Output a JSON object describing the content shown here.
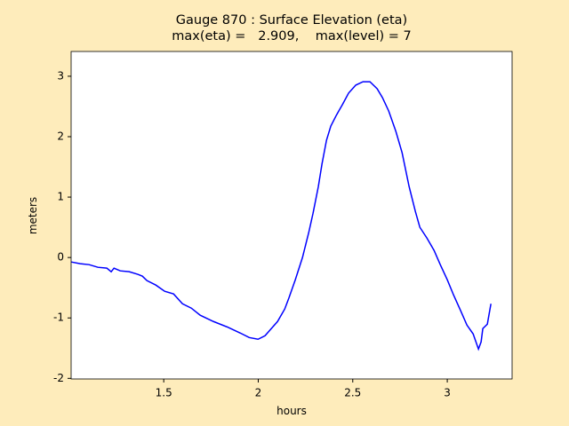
{
  "chart_data": {
    "type": "line",
    "title": "Gauge 870 : Surface Elevation (eta)",
    "subtitle": "max(eta) =   2.909,    max(level) = 7",
    "xlabel": "hours",
    "ylabel": "meters",
    "xlim": [
      1.01,
      3.343
    ],
    "ylim": [
      -2.01,
      3.41
    ],
    "xticks": [
      1.5,
      2.0,
      2.5,
      3.0
    ],
    "yticks": [
      -2,
      -1,
      0,
      1,
      2,
      3
    ],
    "grid": false,
    "series": [
      {
        "color": "#0000ff",
        "x": [
          1.011,
          1.058,
          1.105,
          1.152,
          1.199,
          1.222,
          1.237,
          1.27,
          1.317,
          1.364,
          1.387,
          1.411,
          1.458,
          1.505,
          1.552,
          1.599,
          1.646,
          1.693,
          1.763,
          1.834,
          1.905,
          1.952,
          1.999,
          2.036,
          2.069,
          2.102,
          2.14,
          2.163,
          2.196,
          2.234,
          2.267,
          2.29,
          2.318,
          2.337,
          2.361,
          2.384,
          2.413,
          2.445,
          2.478,
          2.516,
          2.554,
          2.591,
          2.629,
          2.657,
          2.69,
          2.728,
          2.761,
          2.798,
          2.831,
          2.855,
          2.892,
          2.93,
          2.963,
          3.0,
          3.033,
          3.071,
          3.104,
          3.137,
          3.165,
          3.179,
          3.188,
          3.212,
          3.231
        ],
        "values": [
          -0.074,
          -0.103,
          -0.118,
          -0.162,
          -0.176,
          -0.235,
          -0.176,
          -0.221,
          -0.235,
          -0.279,
          -0.309,
          -0.382,
          -0.456,
          -0.559,
          -0.603,
          -0.765,
          -0.838,
          -0.956,
          -1.059,
          -1.147,
          -1.25,
          -1.324,
          -1.353,
          -1.294,
          -1.176,
          -1.059,
          -0.853,
          -0.662,
          -0.368,
          0,
          0.412,
          0.735,
          1.176,
          1.544,
          1.941,
          2.176,
          2.353,
          2.529,
          2.721,
          2.853,
          2.909,
          2.909,
          2.794,
          2.647,
          2.426,
          2.088,
          1.735,
          1.176,
          0.765,
          0.5,
          0.324,
          0.118,
          -0.118,
          -0.368,
          -0.618,
          -0.882,
          -1.118,
          -1.265,
          -1.515,
          -1.397,
          -1.176,
          -1.103,
          -0.765
        ]
      }
    ]
  }
}
